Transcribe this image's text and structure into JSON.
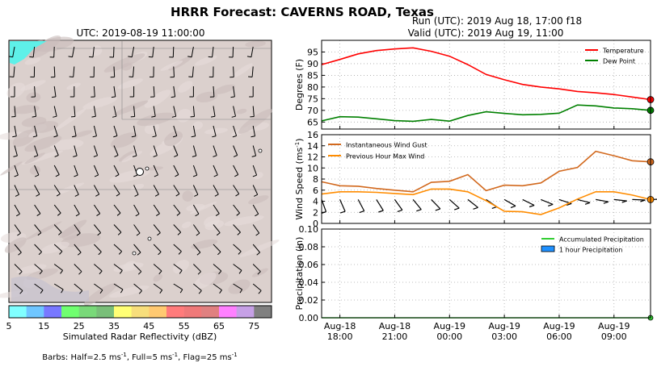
{
  "title": "HRRR Forecast: CAVERNS ROAD, Texas",
  "map": {
    "title": "UTC: 2019-08-19 11:00:00",
    "colorbar_label": "Simulated Radar Reflectivity (dBZ)",
    "colorbar_ticks": [
      "5",
      "15",
      "25",
      "35",
      "45",
      "55",
      "65",
      "75"
    ],
    "colorbar_colors": [
      "#80ffff",
      "#6fc6ff",
      "#7878ff",
      "#70ff70",
      "#79d979",
      "#79bf79",
      "#ffff75",
      "#f7de7b",
      "#ffc971",
      "#ff7b7b",
      "#ef7979",
      "#e08080",
      "#ff80ff",
      "#c6a0e6",
      "#808080"
    ],
    "barbs_note_parts": [
      "Barbs: Half=2.5 ms",
      "-1",
      ", Full=5 ms",
      "-1",
      ", Flag=25 ms",
      "-1"
    ]
  },
  "run_label": "Run (UTC): 2019 Aug 18, 17:00 f18",
  "valid_label": "Valid (UTC): 2019 Aug 19, 11:00",
  "x_tick_labels": [
    [
      "Aug-18",
      "18:00"
    ],
    [
      "Aug-18",
      "21:00"
    ],
    [
      "Aug-19",
      "00:00"
    ],
    [
      "Aug-19",
      "03:00"
    ],
    [
      "Aug-19",
      "06:00"
    ],
    [
      "Aug-19",
      "09:00"
    ]
  ],
  "chart_data": [
    {
      "type": "line",
      "x_hours": [
        17,
        18,
        19,
        20,
        21,
        22,
        23,
        24,
        25,
        26,
        27,
        28,
        29,
        30,
        31,
        32,
        33,
        34,
        35
      ],
      "ylabel": "Degrees (F)",
      "ylim": [
        62,
        100
      ],
      "yticks": [
        65,
        70,
        75,
        80,
        85,
        90,
        95
      ],
      "legend_placement": "top-right",
      "series": [
        {
          "name": "Temperature",
          "color": "#ff0000",
          "values": [
            89.6,
            91.8,
            94.2,
            95.6,
            96.3,
            96.8,
            95.3,
            93.2,
            89.6,
            85.4,
            83.1,
            81.1,
            80.0,
            79.2,
            78.1,
            77.5,
            76.8,
            75.7,
            74.6
          ]
        },
        {
          "name": "Dew Point",
          "color": "#008000",
          "values": [
            65.5,
            67.3,
            67.1,
            66.4,
            65.6,
            65.3,
            66.1,
            65.4,
            67.8,
            69.4,
            68.7,
            68.1,
            68.3,
            68.8,
            72.3,
            71.9,
            71.0,
            70.7,
            70.0
          ]
        }
      ]
    },
    {
      "type": "line",
      "x_hours": [
        17,
        18,
        19,
        20,
        21,
        22,
        23,
        24,
        25,
        26,
        27,
        28,
        29,
        30,
        31,
        32,
        33,
        34,
        35
      ],
      "ylabel": "Wind Speed (ms",
      "ylabel_sup": "-1",
      "ylabel_end": ")",
      "ylim": [
        0,
        16
      ],
      "yticks": [
        0,
        2,
        4,
        6,
        8,
        10,
        12,
        14,
        16
      ],
      "legend_placement": "top-left",
      "series": [
        {
          "name": "Instantaneous Wind Gust",
          "color": "#d2691e",
          "values": [
            7.5,
            6.8,
            6.7,
            6.3,
            6.0,
            5.7,
            7.4,
            7.6,
            8.8,
            5.9,
            6.9,
            6.8,
            7.3,
            9.4,
            10.1,
            13.0,
            12.2,
            11.3,
            11.1
          ]
        },
        {
          "name": "Previous Hour Max Wind",
          "color": "#ff8c00",
          "values": [
            5.3,
            5.7,
            5.7,
            5.6,
            5.4,
            5.2,
            6.2,
            6.2,
            5.7,
            4.1,
            2.2,
            2.1,
            1.6,
            2.8,
            4.4,
            5.7,
            5.7,
            5.1,
            4.3
          ]
        }
      ]
    },
    {
      "type": "line",
      "x_hours": [
        17,
        18,
        19,
        20,
        21,
        22,
        23,
        24,
        25,
        26,
        27,
        28,
        29,
        30,
        31,
        32,
        33,
        34,
        35
      ],
      "ylabel": "Precipitation (in)",
      "ylim": [
        0,
        0.1
      ],
      "yticks": [
        "0.00",
        "0.02",
        "0.04",
        "0.06",
        "0.08",
        "0.10"
      ],
      "legend_placement": "top-right",
      "series": [
        {
          "name": "Accumulated Precipitation",
          "color": "#32cd32",
          "values": [
            0,
            0,
            0,
            0,
            0,
            0,
            0,
            0,
            0,
            0,
            0,
            0,
            0,
            0,
            0,
            0,
            0,
            0,
            0
          ]
        },
        {
          "name": "1 hour Precipitation",
          "color": "#1e90ff",
          "values": [
            0,
            0,
            0,
            0,
            0,
            0,
            0,
            0,
            0,
            0,
            0,
            0,
            0,
            0,
            0,
            0,
            0,
            0,
            0
          ]
        }
      ]
    }
  ]
}
